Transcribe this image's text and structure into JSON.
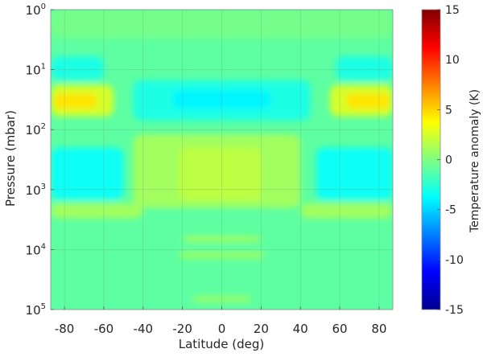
{
  "chart_data": {
    "type": "heatmap",
    "title": "",
    "xlabel": "Latitude (deg)",
    "ylabel": "Pressure (mbar)",
    "colorbar_label": "Temperature anomaly (K)",
    "colormap": "jet",
    "xlim": [
      -87,
      87
    ],
    "ylim_pressure_mbar": [
      1,
      100000
    ],
    "yscale": "log",
    "y_reversed": true,
    "grid": true,
    "color_range": [
      -15,
      15
    ],
    "x_ticks": [
      -80,
      -60,
      -40,
      -20,
      0,
      20,
      40,
      60,
      80
    ],
    "x_tick_labels": [
      "-80",
      "-60",
      "-40",
      "-20",
      "0",
      "20",
      "40",
      "60",
      "80"
    ],
    "y_ticks": [
      {
        "base": "10",
        "exp": "0",
        "value": 1
      },
      {
        "base": "10",
        "exp": "1",
        "value": 10
      },
      {
        "base": "10",
        "exp": "2",
        "value": 100
      },
      {
        "base": "10",
        "exp": "3",
        "value": 1000
      },
      {
        "base": "10",
        "exp": "4",
        "value": 10000
      },
      {
        "base": "10",
        "exp": "5",
        "value": 100000
      }
    ],
    "colorbar_ticks": [
      15,
      10,
      5,
      0,
      -5,
      -10,
      -15
    ],
    "colorbar_tick_labels": [
      "15",
      "10",
      "5",
      "0",
      "-5",
      "-10",
      "-15"
    ],
    "background_anomaly_K": -1,
    "regions": [
      {
        "name": "upper-band",
        "lat_min": -87,
        "lat_max": 87,
        "p_min_mbar": 1,
        "p_max_mbar": 3,
        "value_K": -0.3
      },
      {
        "name": "upper-left-cool",
        "lat_min": -87,
        "lat_max": -60,
        "p_min_mbar": 6,
        "p_max_mbar": 15,
        "value_K": -3
      },
      {
        "name": "upper-right-cool",
        "lat_min": 58,
        "lat_max": 87,
        "p_min_mbar": 6,
        "p_max_mbar": 15,
        "value_K": -3
      },
      {
        "name": "left-warm-outer",
        "lat_min": -87,
        "lat_max": -55,
        "p_min_mbar": 18,
        "p_max_mbar": 60,
        "value_K": 2.5
      },
      {
        "name": "left-warm-inner",
        "lat_min": -86,
        "lat_max": -63,
        "p_min_mbar": 25,
        "p_max_mbar": 45,
        "value_K": 4.5
      },
      {
        "name": "right-warm-outer",
        "lat_min": 55,
        "lat_max": 87,
        "p_min_mbar": 18,
        "p_max_mbar": 60,
        "value_K": 2.5
      },
      {
        "name": "right-warm-inner",
        "lat_min": 63,
        "lat_max": 86,
        "p_min_mbar": 25,
        "p_max_mbar": 45,
        "value_K": 4.5
      },
      {
        "name": "central-cool",
        "lat_min": -45,
        "lat_max": 45,
        "p_min_mbar": 15,
        "p_max_mbar": 70,
        "value_K": -3
      },
      {
        "name": "central-cool-core",
        "lat_min": -25,
        "lat_max": 25,
        "p_min_mbar": 22,
        "p_max_mbar": 45,
        "value_K": -4
      },
      {
        "name": "left-mid-cool",
        "lat_min": -87,
        "lat_max": -50,
        "p_min_mbar": 200,
        "p_max_mbar": 1500,
        "value_K": -3.5
      },
      {
        "name": "right-mid-cool",
        "lat_min": 48,
        "lat_max": 87,
        "p_min_mbar": 200,
        "p_max_mbar": 1500,
        "value_K": -3.5
      },
      {
        "name": "equatorial-warm",
        "lat_min": -45,
        "lat_max": 40,
        "p_min_mbar": 120,
        "p_max_mbar": 2000,
        "value_K": 1
      },
      {
        "name": "equatorial-warm-core",
        "lat_min": -22,
        "lat_max": 20,
        "p_min_mbar": 200,
        "p_max_mbar": 1500,
        "value_K": 1.8
      },
      {
        "name": "lower-left-warm",
        "lat_min": -87,
        "lat_max": -40,
        "p_min_mbar": 1700,
        "p_max_mbar": 3000,
        "value_K": 1
      },
      {
        "name": "lower-right-warm",
        "lat_min": 40,
        "lat_max": 87,
        "p_min_mbar": 1700,
        "p_max_mbar": 3000,
        "value_K": 1
      },
      {
        "name": "deep-warm-band-1",
        "lat_min": -20,
        "lat_max": 20,
        "p_min_mbar": 6000,
        "p_max_mbar": 7500,
        "value_K": 1
      },
      {
        "name": "deep-warm-band-2",
        "lat_min": -22,
        "lat_max": 22,
        "p_min_mbar": 11000,
        "p_max_mbar": 14000,
        "value_K": 0.8
      },
      {
        "name": "bottom-warm-band",
        "lat_min": -15,
        "lat_max": 15,
        "p_min_mbar": 60000,
        "p_max_mbar": 75000,
        "value_K": 0.8
      }
    ]
  }
}
